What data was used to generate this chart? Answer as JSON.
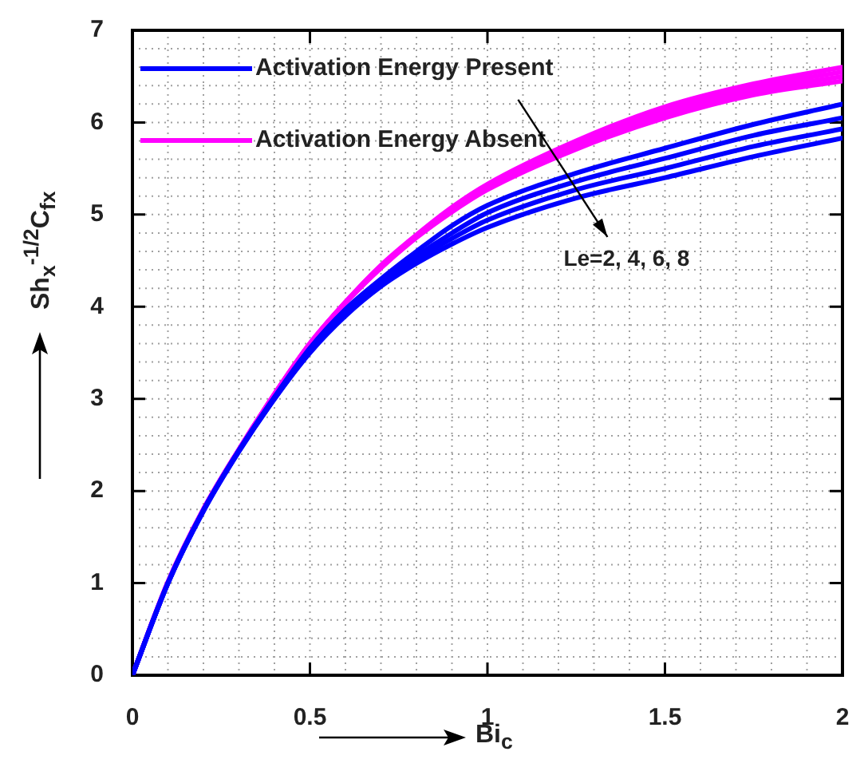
{
  "chart_data": {
    "type": "line",
    "xlabel": "Bi$_{c}$",
    "ylabel": "Sh$_{x}$$^{-1/2}$C$_{fx}$",
    "x": [
      0,
      0.1,
      0.2,
      0.3,
      0.4,
      0.5,
      0.6,
      0.7,
      0.8,
      0.9,
      1,
      1.25,
      1.5,
      1.75,
      2
    ],
    "series": [
      {
        "name": "Activation Energy Present",
        "color": "#0000ff",
        "values": [
          0,
          1.0,
          1.79,
          2.44,
          3.02,
          3.55,
          3.97,
          4.3,
          4.6,
          4.88,
          5.1,
          5.45,
          5.72,
          5.98,
          6.2
        ]
      },
      {
        "color": "#0000ff",
        "values": [
          0,
          1.0,
          1.79,
          2.44,
          3.01,
          3.53,
          3.94,
          4.27,
          4.55,
          4.8,
          5.02,
          5.36,
          5.61,
          5.86,
          6.05
        ]
      },
      {
        "color": "#0000ff",
        "values": [
          0,
          1.0,
          1.79,
          2.43,
          3.0,
          3.51,
          3.92,
          4.24,
          4.51,
          4.74,
          4.94,
          5.27,
          5.5,
          5.74,
          5.93
        ]
      },
      {
        "color": "#0000ff",
        "values": [
          0,
          1.0,
          1.78,
          2.43,
          3.0,
          3.5,
          3.9,
          4.22,
          4.47,
          4.68,
          4.86,
          5.18,
          5.4,
          5.63,
          5.83
        ]
      },
      {
        "name": "Activation Energy Absent",
        "color": "#ff00ff",
        "values": [
          0,
          1.01,
          1.8,
          2.45,
          3.05,
          3.6,
          4.05,
          4.45,
          4.78,
          5.08,
          5.33,
          5.8,
          6.17,
          6.42,
          6.6
        ]
      },
      {
        "color": "#ff00ff",
        "values": [
          0,
          1.01,
          1.8,
          2.45,
          3.05,
          3.6,
          4.05,
          4.44,
          4.77,
          5.06,
          5.31,
          5.77,
          6.13,
          6.38,
          6.55
        ]
      },
      {
        "color": "#ff00ff",
        "values": [
          0,
          1.01,
          1.8,
          2.45,
          3.05,
          3.6,
          4.04,
          4.43,
          4.76,
          5.05,
          5.29,
          5.74,
          6.09,
          6.34,
          6.5
        ]
      },
      {
        "color": "#ff00ff",
        "values": [
          0,
          1.01,
          1.8,
          2.45,
          3.05,
          3.6,
          4.04,
          4.42,
          4.75,
          5.03,
          5.27,
          5.71,
          6.05,
          6.3,
          6.45
        ]
      }
    ],
    "annotations": [
      "Le=2, 4, 6, 8"
    ],
    "xlim": [
      0,
      2
    ],
    "xticks": [
      0,
      0.5,
      1,
      1.5,
      2
    ],
    "ylim": [
      0,
      7
    ],
    "yticks": [
      0,
      1,
      2,
      3,
      4,
      5,
      6,
      7
    ],
    "grid": true,
    "legend": "top left",
    "marker": "none",
    "line_style": "solid"
  }
}
